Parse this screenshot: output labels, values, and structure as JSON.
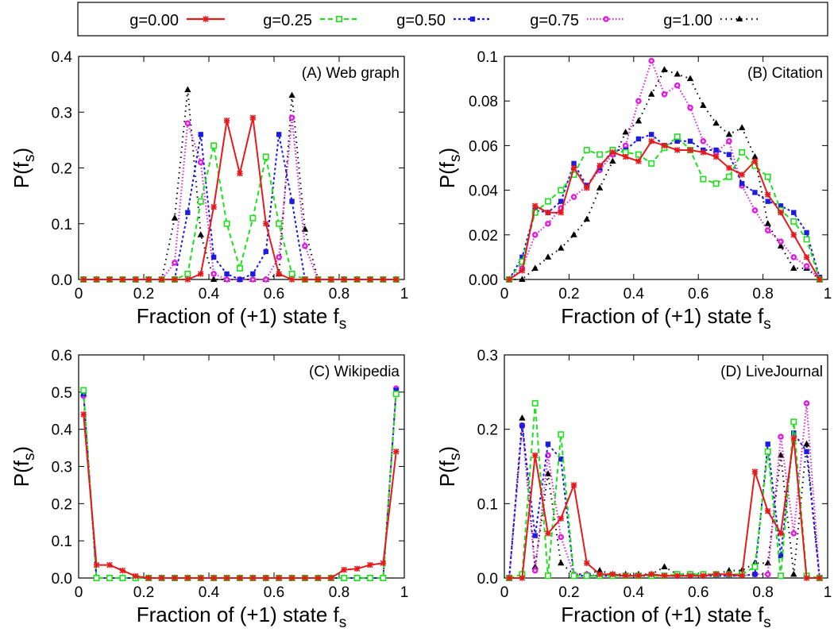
{
  "legend": [
    {
      "label": "g=0.00",
      "color": "#e41a1c",
      "marker": "star",
      "dash": ""
    },
    {
      "label": "g=0.25",
      "color": "#1ee01e",
      "marker": "square-open",
      "dash": "6,4"
    },
    {
      "label": "g=0.50",
      "color": "#1c1ce0",
      "marker": "square",
      "dash": "3,3"
    },
    {
      "label": "g=0.75",
      "color": "#e01ee0",
      "marker": "circle",
      "dash": "1.5,2.5"
    },
    {
      "label": "g=1.00",
      "color": "#000000",
      "marker": "triangle",
      "dash": "1.5,5"
    }
  ],
  "chart_data": [
    {
      "type": "line",
      "title": "(A) Web graph",
      "xlabel": "Fraction of (+1) state f",
      "xlabel_sub": "s",
      "ylabel": "P(f",
      "ylabel_sub": "s",
      "ylabel_close": ")",
      "xlim": [
        0,
        1
      ],
      "ylim": [
        0,
        0.4
      ],
      "xticks": [
        "0",
        "0.2",
        "0.4",
        "0.6",
        "0.8",
        "1"
      ],
      "yticks": [
        "0.0",
        "0.1",
        "0.2",
        "0.3",
        "0.4"
      ],
      "x": [
        0.015,
        0.055,
        0.095,
        0.135,
        0.175,
        0.215,
        0.255,
        0.295,
        0.335,
        0.375,
        0.415,
        0.455,
        0.495,
        0.535,
        0.575,
        0.615,
        0.655,
        0.695,
        0.735,
        0.775,
        0.815,
        0.855,
        0.895,
        0.935,
        0.975
      ],
      "series": [
        {
          "name": "g=0.00",
          "values": [
            0,
            0,
            0,
            0,
            0,
            0,
            0,
            0,
            0,
            0.01,
            0.13,
            0.285,
            0.19,
            0.29,
            0.1,
            0.01,
            0,
            0,
            0,
            0,
            0,
            0,
            0,
            0,
            0
          ]
        },
        {
          "name": "g=0.25",
          "values": [
            0,
            0,
            0,
            0,
            0,
            0,
            0,
            0,
            0.01,
            0.14,
            0.24,
            0.1,
            0.02,
            0.11,
            0.22,
            0.1,
            0.01,
            0,
            0,
            0,
            0,
            0,
            0,
            0,
            0
          ]
        },
        {
          "name": "g=0.50",
          "values": [
            0,
            0,
            0,
            0,
            0,
            0,
            0,
            0,
            0.12,
            0.26,
            0.04,
            0.01,
            0,
            0.01,
            0.05,
            0.26,
            0.14,
            0,
            0,
            0,
            0,
            0,
            0,
            0,
            0
          ]
        },
        {
          "name": "g=0.75",
          "values": [
            0,
            0,
            0,
            0,
            0,
            0,
            0,
            0.03,
            0.28,
            0.21,
            0.01,
            0,
            0,
            0,
            0,
            0.04,
            0.29,
            0.06,
            0,
            0,
            0,
            0,
            0,
            0,
            0
          ]
        },
        {
          "name": "g=1.00",
          "values": [
            0,
            0,
            0,
            0,
            0,
            0,
            0,
            0.11,
            0.34,
            0.08,
            0,
            0,
            0,
            0,
            0,
            0.01,
            0.33,
            0.09,
            0,
            0,
            0,
            0,
            0,
            0,
            0
          ]
        }
      ]
    },
    {
      "type": "line",
      "title": "(B) Citation",
      "xlabel": "Fraction of (+1) state f",
      "xlabel_sub": "s",
      "ylabel": "P(f",
      "ylabel_sub": "s",
      "ylabel_close": ")",
      "xlim": [
        0,
        1
      ],
      "ylim": [
        0,
        0.1
      ],
      "xticks": [
        "0",
        "0.2",
        "0.4",
        "0.6",
        "0.8",
        "1"
      ],
      "yticks": [
        "0.00",
        "0.02",
        "0.04",
        "0.06",
        "0.08",
        "0.1"
      ],
      "x": [
        0.015,
        0.055,
        0.095,
        0.135,
        0.175,
        0.215,
        0.255,
        0.295,
        0.335,
        0.375,
        0.415,
        0.455,
        0.495,
        0.535,
        0.575,
        0.615,
        0.655,
        0.695,
        0.735,
        0.775,
        0.815,
        0.855,
        0.895,
        0.935,
        0.975
      ],
      "series": [
        {
          "name": "g=0.00",
          "values": [
            0,
            0.004,
            0.033,
            0.03,
            0.03,
            0.05,
            0.041,
            0.051,
            0.057,
            0.055,
            0.053,
            0.062,
            0.06,
            0.058,
            0.058,
            0.057,
            0.055,
            0.05,
            0.047,
            0.053,
            0.038,
            0.03,
            0.02,
            0.01,
            0
          ]
        },
        {
          "name": "g=0.25",
          "values": [
            0,
            0.008,
            0.03,
            0.035,
            0.04,
            0.047,
            0.058,
            0.056,
            0.058,
            0.057,
            0.056,
            0.052,
            0.059,
            0.064,
            0.058,
            0.045,
            0.043,
            0.046,
            0.057,
            0.051,
            0.046,
            0.031,
            0.026,
            0.018,
            0
          ]
        },
        {
          "name": "g=0.50",
          "values": [
            0,
            0.01,
            0.031,
            0.03,
            0.035,
            0.052,
            0.042,
            0.05,
            0.058,
            0.058,
            0.063,
            0.065,
            0.06,
            0.062,
            0.062,
            0.058,
            0.058,
            0.056,
            0.043,
            0.039,
            0.035,
            0.033,
            0.03,
            0.021,
            0.001
          ]
        },
        {
          "name": "g=0.75",
          "values": [
            0,
            0.005,
            0.02,
            0.025,
            0.032,
            0.037,
            0.042,
            0.049,
            0.056,
            0.06,
            0.08,
            0.098,
            0.083,
            0.087,
            0.077,
            0.062,
            0.057,
            0.062,
            0.042,
            0.031,
            0.022,
            0.017,
            0.01,
            0.006,
            0
          ]
        },
        {
          "name": "g=1.00",
          "values": [
            0,
            0,
            0.005,
            0.01,
            0.014,
            0.02,
            0.027,
            0.041,
            0.053,
            0.066,
            0.071,
            0.083,
            0.094,
            0.092,
            0.09,
            0.078,
            0.07,
            0.065,
            0.068,
            0.055,
            0.025,
            0.015,
            0.005,
            0.005,
            0
          ]
        }
      ]
    },
    {
      "type": "line",
      "title": "(C) Wikipedia",
      "xlabel": "Fraction of (+1) state f",
      "xlabel_sub": "s",
      "ylabel": "P(f",
      "ylabel_sub": "s",
      "ylabel_close": ")",
      "xlim": [
        0,
        1
      ],
      "ylim": [
        0,
        0.6
      ],
      "xticks": [
        "0",
        "0.2",
        "0.4",
        "0.6",
        "0.8",
        "1"
      ],
      "yticks": [
        "0.0",
        "0.1",
        "0.2",
        "0.3",
        "0.4",
        "0.5",
        "0.6"
      ],
      "x": [
        0.015,
        0.055,
        0.095,
        0.135,
        0.175,
        0.215,
        0.255,
        0.295,
        0.335,
        0.375,
        0.415,
        0.455,
        0.495,
        0.535,
        0.575,
        0.615,
        0.655,
        0.695,
        0.735,
        0.775,
        0.815,
        0.855,
        0.895,
        0.935,
        0.975
      ],
      "series": [
        {
          "name": "g=0.00",
          "values": [
            0.44,
            0.035,
            0.035,
            0.02,
            0.005,
            0,
            0,
            0,
            0,
            0,
            0,
            0,
            0,
            0,
            0,
            0,
            0,
            0,
            0,
            0,
            0.022,
            0.025,
            0.035,
            0.04,
            0.34
          ]
        },
        {
          "name": "g=0.25",
          "values": [
            0.505,
            0,
            0,
            0,
            0,
            0,
            0,
            0,
            0,
            0,
            0,
            0,
            0,
            0,
            0,
            0,
            0,
            0,
            0,
            0,
            0,
            0,
            0,
            0,
            0.495
          ]
        },
        {
          "name": "g=0.50",
          "values": [
            0.495,
            0,
            0,
            0,
            0,
            0,
            0,
            0,
            0,
            0,
            0,
            0,
            0,
            0,
            0,
            0,
            0,
            0,
            0,
            0,
            0,
            0,
            0,
            0,
            0.505
          ]
        },
        {
          "name": "g=0.75",
          "values": [
            0.49,
            0,
            0,
            0,
            0,
            0,
            0,
            0,
            0,
            0,
            0,
            0,
            0,
            0,
            0,
            0,
            0,
            0,
            0,
            0,
            0,
            0,
            0,
            0,
            0.51
          ]
        },
        {
          "name": "g=1.00",
          "values": [
            0.495,
            0,
            0,
            0,
            0,
            0,
            0,
            0,
            0,
            0,
            0,
            0,
            0,
            0,
            0,
            0,
            0,
            0,
            0,
            0,
            0,
            0,
            0,
            0,
            0.505
          ]
        }
      ]
    },
    {
      "type": "line",
      "title": "(D) LiveJournal",
      "xlabel": "Fraction of (+1) state f",
      "xlabel_sub": "s",
      "ylabel": "P(f",
      "ylabel_sub": "s",
      "ylabel_close": ")",
      "xlim": [
        0,
        1
      ],
      "ylim": [
        0,
        0.3
      ],
      "xticks": [
        "0",
        "0.2",
        "0.4",
        "0.6",
        "0.8",
        "1"
      ],
      "yticks": [
        "0.0",
        "0.1",
        "0.2",
        "0.3"
      ],
      "x": [
        0.015,
        0.055,
        0.095,
        0.135,
        0.175,
        0.215,
        0.255,
        0.295,
        0.335,
        0.375,
        0.415,
        0.455,
        0.495,
        0.535,
        0.575,
        0.615,
        0.655,
        0.695,
        0.735,
        0.775,
        0.815,
        0.855,
        0.895,
        0.935,
        0.975
      ],
      "series": [
        {
          "name": "g=0.00",
          "values": [
            0,
            0,
            0.165,
            0.06,
            0.08,
            0.125,
            0.02,
            0.005,
            0.005,
            0.003,
            0.003,
            0.005,
            0.003,
            0.003,
            0.003,
            0.003,
            0.005,
            0.005,
            0.003,
            0.143,
            0.09,
            0.06,
            0.188,
            0,
            0
          ]
        },
        {
          "name": "g=0.25",
          "values": [
            0,
            0.005,
            0.235,
            0.003,
            0.193,
            0.003,
            0.003,
            0.003,
            0.003,
            0.003,
            0.003,
            0.003,
            0.003,
            0.005,
            0.005,
            0.005,
            0.005,
            0.005,
            0.005,
            0.015,
            0.17,
            0.003,
            0.21,
            0.003,
            0
          ]
        },
        {
          "name": "g=0.50",
          "values": [
            0,
            0.205,
            0.057,
            0.18,
            0.16,
            0.003,
            0.003,
            0.003,
            0.003,
            0.003,
            0.003,
            0.003,
            0.003,
            0.003,
            0.003,
            0.003,
            0.003,
            0.003,
            0.003,
            0.005,
            0.18,
            0.03,
            0.195,
            0.17,
            0
          ]
        },
        {
          "name": "g=0.75",
          "values": [
            0,
            0.205,
            0.01,
            0.165,
            0.055,
            0.005,
            0.005,
            0.003,
            0.003,
            0.003,
            0.003,
            0.003,
            0.003,
            0.003,
            0.003,
            0.003,
            0.003,
            0.003,
            0.003,
            0.005,
            0.005,
            0.19,
            0.06,
            0.235,
            0
          ]
        },
        {
          "name": "g=1.00",
          "values": [
            0,
            0.215,
            0.015,
            0.14,
            0.02,
            0.005,
            0.005,
            0.01,
            0.005,
            0.005,
            0.005,
            0.005,
            0.015,
            0.005,
            0.005,
            0.005,
            0.005,
            0.01,
            0.01,
            0.02,
            0.02,
            0.165,
            0.005,
            0.18,
            0
          ]
        }
      ]
    }
  ]
}
